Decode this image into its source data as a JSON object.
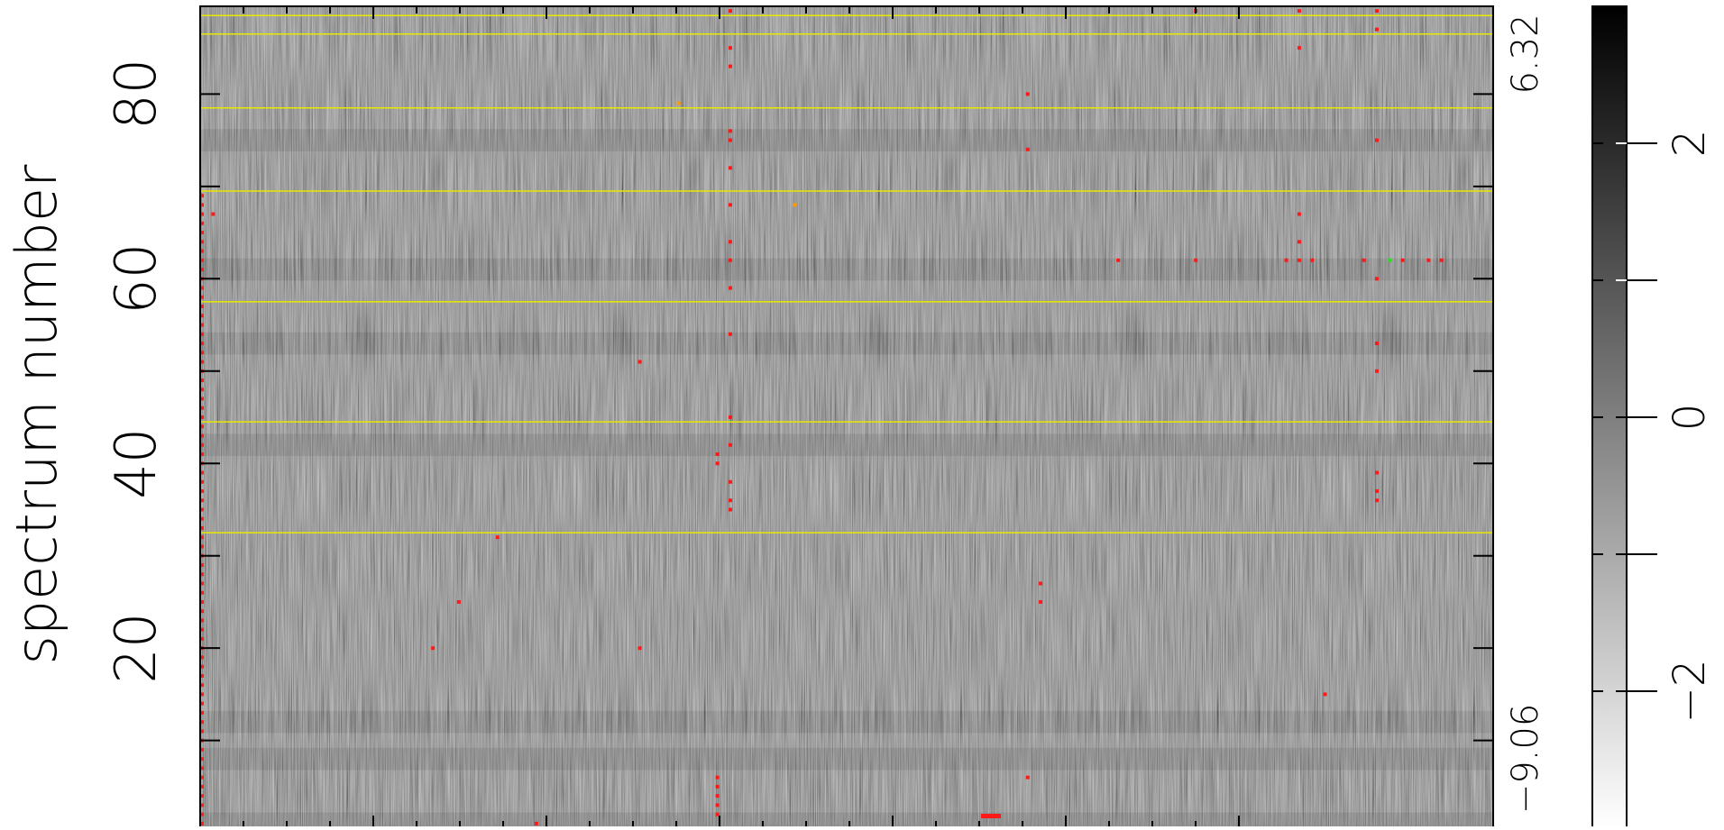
{
  "chart_data": {
    "type": "heatmap",
    "title": "",
    "ylabel": "spectrum number",
    "xlabel": "",
    "colormap": "greyscale (white = low, black = high)",
    "y_range": [
      0.5,
      89.5
    ],
    "y_ticks": [
      "20",
      "40",
      "60",
      "80"
    ],
    "y_tick_values": [
      20,
      40,
      60,
      80
    ],
    "right_axis_labels": {
      "top": "6.32",
      "bottom": "−9.06"
    },
    "colorbar": {
      "range": [
        -3,
        3
      ],
      "ticks": [
        "−2",
        "0",
        "2"
      ],
      "tick_values": [
        -2,
        0,
        2
      ]
    },
    "yellow_lines_at_spectrum": [
      88.5,
      86.5,
      78.5,
      69.5,
      57.5,
      44.5,
      32.5
    ],
    "dark_bands_at_spectrum": [
      61,
      42,
      12,
      75,
      53,
      8,
      1
    ],
    "flagged_points": [
      {
        "x": 0.41,
        "y": 89
      },
      {
        "x": 0.41,
        "y": 85
      },
      {
        "x": 0.41,
        "y": 83
      },
      {
        "x": 0.41,
        "y": 76
      },
      {
        "x": 0.41,
        "y": 75
      },
      {
        "x": 0.41,
        "y": 72
      },
      {
        "x": 0.41,
        "y": 68
      },
      {
        "x": 0.41,
        "y": 64
      },
      {
        "x": 0.41,
        "y": 62
      },
      {
        "x": 0.41,
        "y": 59
      },
      {
        "x": 0.41,
        "y": 54
      },
      {
        "x": 0.41,
        "y": 45
      },
      {
        "x": 0.41,
        "y": 42
      },
      {
        "x": 0.41,
        "y": 38
      },
      {
        "x": 0.41,
        "y": 36
      },
      {
        "x": 0.41,
        "y": 35
      },
      {
        "x": 0.4,
        "y": 41
      },
      {
        "x": 0.4,
        "y": 40
      },
      {
        "x": 0.34,
        "y": 51
      },
      {
        "x": 0.23,
        "y": 32
      },
      {
        "x": 0.2,
        "y": 25
      },
      {
        "x": 0.18,
        "y": 20
      },
      {
        "x": 0.34,
        "y": 20
      },
      {
        "x": 0.64,
        "y": 80
      },
      {
        "x": 0.64,
        "y": 74
      },
      {
        "x": 0.65,
        "y": 27
      },
      {
        "x": 0.65,
        "y": 25
      },
      {
        "x": 0.71,
        "y": 62
      },
      {
        "x": 0.77,
        "y": 62
      },
      {
        "x": 0.77,
        "y": 89
      },
      {
        "x": 0.85,
        "y": 89
      },
      {
        "x": 0.85,
        "y": 85
      },
      {
        "x": 0.85,
        "y": 67
      },
      {
        "x": 0.85,
        "y": 64
      },
      {
        "x": 0.84,
        "y": 62
      },
      {
        "x": 0.85,
        "y": 62
      },
      {
        "x": 0.86,
        "y": 62
      },
      {
        "x": 0.87,
        "y": 15
      },
      {
        "x": 0.91,
        "y": 89
      },
      {
        "x": 0.91,
        "y": 87
      },
      {
        "x": 0.91,
        "y": 75
      },
      {
        "x": 0.91,
        "y": 60
      },
      {
        "x": 0.91,
        "y": 53
      },
      {
        "x": 0.91,
        "y": 50
      },
      {
        "x": 0.91,
        "y": 39
      },
      {
        "x": 0.91,
        "y": 37
      },
      {
        "x": 0.91,
        "y": 36
      },
      {
        "x": 0.9,
        "y": 62
      },
      {
        "x": 0.93,
        "y": 62
      },
      {
        "x": 0.95,
        "y": 62
      },
      {
        "x": 0.96,
        "y": 62
      },
      {
        "x": 0.01,
        "y": 67
      },
      {
        "x": 0.4,
        "y": 6
      },
      {
        "x": 0.4,
        "y": 5
      },
      {
        "x": 0.4,
        "y": 4
      },
      {
        "x": 0.4,
        "y": 3
      },
      {
        "x": 0.4,
        "y": 2
      },
      {
        "x": 0.64,
        "y": 6
      },
      {
        "x": 0.26,
        "y": 1
      },
      {
        "x": 0.24,
        "y": 0.5
      }
    ],
    "orange_points": [
      {
        "x": 0.37,
        "y": 79
      },
      {
        "x": 0.46,
        "y": 68
      }
    ],
    "green_points": [
      {
        "x": 0.92,
        "y": 62
      }
    ]
  }
}
